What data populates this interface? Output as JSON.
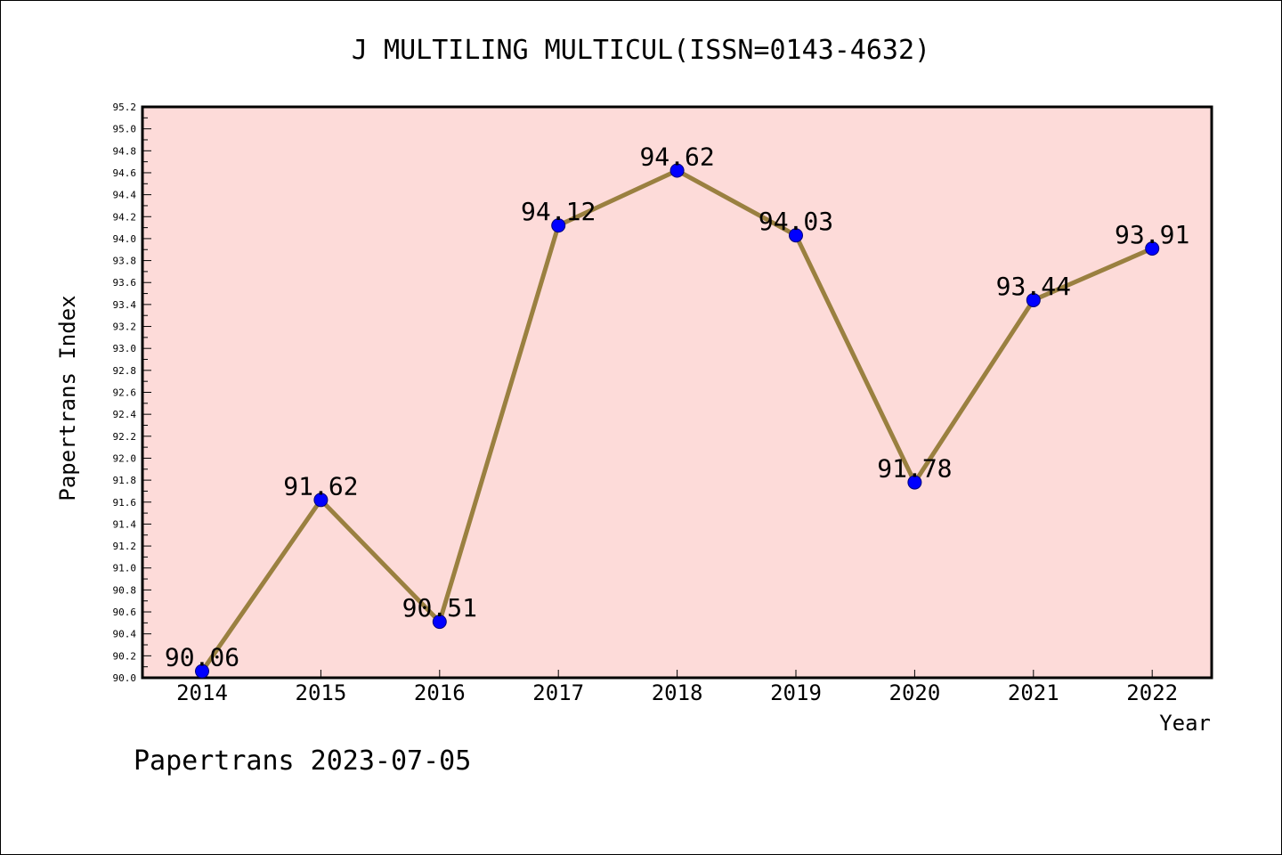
{
  "chart_data": {
    "type": "line",
    "title": "J MULTILING MULTICUL(ISSN=0143-4632)",
    "xlabel": "Year",
    "ylabel": "Papertrans Index",
    "categories": [
      "2014",
      "2015",
      "2016",
      "2017",
      "2018",
      "2019",
      "2020",
      "2021",
      "2022"
    ],
    "values": [
      90.06,
      91.62,
      90.51,
      94.12,
      94.62,
      94.03,
      91.78,
      93.44,
      93.91
    ],
    "data_labels": [
      "90.06",
      "91.62",
      "90.51",
      "94.12",
      "94.62",
      "94.03",
      "91.78",
      "93.44",
      "93.91"
    ],
    "ylim": [
      90.0,
      95.2
    ],
    "yticks": [
      "90.0",
      "90.2",
      "90.4",
      "90.6",
      "90.8",
      "91.0",
      "91.2",
      "91.4",
      "91.6",
      "91.8",
      "92.0",
      "92.2",
      "92.4",
      "92.6",
      "92.8",
      "93.0",
      "93.2",
      "93.4",
      "93.6",
      "93.8",
      "94.0",
      "94.2",
      "94.4",
      "94.6",
      "94.8",
      "95.0",
      "95.2"
    ],
    "grid": false,
    "legend": "none",
    "colors": {
      "plot_background": "#fddbd9",
      "line": "#9a8040",
      "marker": "#0000ff"
    }
  },
  "footer": "Papertrans 2023-07-05"
}
